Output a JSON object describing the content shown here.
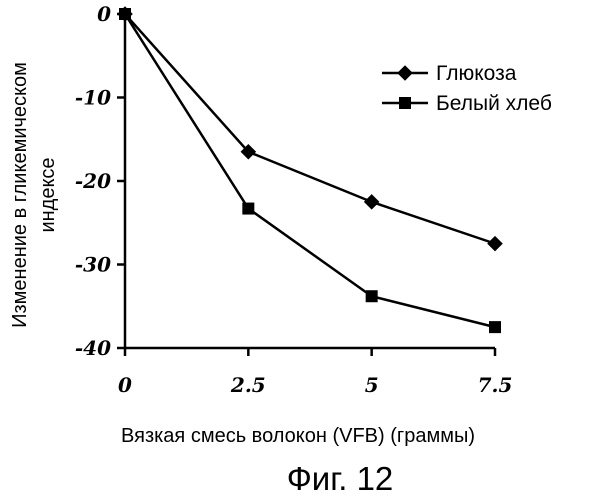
{
  "chart_data": {
    "type": "line",
    "x": [
      0,
      2.5,
      5,
      7.5
    ],
    "x_tick_labels": [
      "0",
      "2.5",
      "5",
      "7.5"
    ],
    "y_tick_values": [
      0,
      -10,
      -20,
      -30,
      -40
    ],
    "y_tick_labels": [
      "0",
      "-10",
      "-20",
      "-30",
      "-40"
    ],
    "xlim": [
      0,
      7.5
    ],
    "ylim": [
      -40,
      0
    ],
    "xlabel": "Вязкая смесь волокон (VFB) (граммы)",
    "ylabel_line1": "Изменение в гликемическом",
    "ylabel_line2": "индексе",
    "caption": "Фиг. 12",
    "grid": false,
    "legend_position": "top-right",
    "series": [
      {
        "name": "Глюкоза",
        "marker": "diamond",
        "color": "#000000",
        "values": [
          0,
          -16.5,
          -22.5,
          -27.5
        ]
      },
      {
        "name": "Белый хлеб",
        "marker": "square",
        "color": "#000000",
        "values": [
          0,
          -23.3,
          -33.8,
          -37.5
        ]
      }
    ]
  }
}
